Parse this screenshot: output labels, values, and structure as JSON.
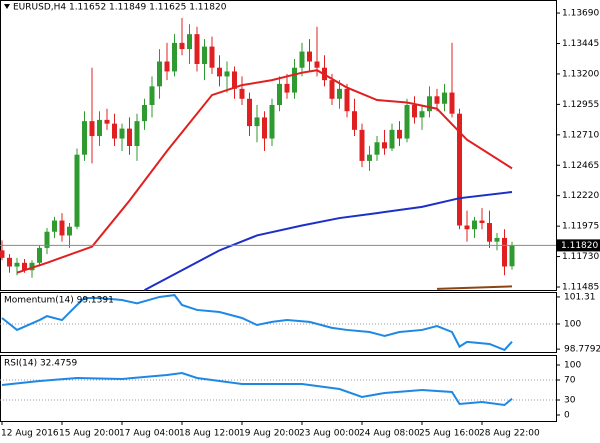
{
  "chart_data": {
    "type": "candlestick",
    "title": "EURUSD,H4 1.11652 1.11849 1.11625 1.11820",
    "categories": [
      "12 Aug 2016",
      null,
      null,
      null,
      null,
      null,
      null,
      null,
      "15 Aug 20:00",
      null,
      null,
      null,
      null,
      null,
      null,
      null,
      "17 Aug 04:00",
      null,
      null,
      null,
      null,
      null,
      null,
      null,
      "18 Aug 12:00",
      null,
      null,
      null,
      null,
      null,
      null,
      null,
      "19 Aug 20:00",
      null,
      null,
      null,
      null,
      null,
      null,
      null,
      "23 Aug 00:00",
      null,
      null,
      null,
      null,
      null,
      null,
      null,
      "24 Aug 08:00",
      null,
      null,
      null,
      null,
      null,
      null,
      null,
      "25 Aug 16:00",
      null,
      null,
      null,
      null,
      null,
      null,
      null,
      "28 Aug 22:00",
      null,
      null,
      null,
      null
    ],
    "open": [
      1.1178,
      1.1172,
      1.1165,
      1.1168,
      1.1162,
      1.1168,
      1.118,
      1.1193,
      1.1202,
      1.119,
      1.1197,
      1.1255,
      1.1282,
      1.127,
      1.1283,
      1.128,
      1.1268,
      1.1276,
      1.1262,
      1.1282,
      1.1295,
      1.131,
      1.133,
      1.1322,
      1.1345,
      1.134,
      1.1352,
      1.1328,
      1.1342,
      1.1325,
      1.1318,
      1.1322,
      1.1308,
      1.13,
      1.1278,
      1.1285,
      1.1268,
      1.1295,
      1.1312,
      1.1305,
      1.1325,
      1.1338,
      1.133,
      1.1325,
      1.1315,
      1.13,
      1.1308,
      1.129,
      1.1275,
      1.125,
      1.1255,
      1.1265,
      1.126,
      1.1275,
      1.1268,
      1.1295,
      1.1285,
      1.129,
      1.1302,
      1.1296,
      1.1305,
      1.1288,
      1.1198,
      1.1195,
      1.1202,
      1.12,
      1.1185,
      1.1188,
      1.11652
    ],
    "high": [
      1.1186,
      1.1175,
      1.1172,
      1.1171,
      1.117,
      1.1182,
      1.1196,
      1.1205,
      1.1208,
      1.12,
      1.126,
      1.129,
      1.1325,
      1.129,
      1.1292,
      1.1288,
      1.128,
      1.1285,
      1.1288,
      1.13,
      1.1318,
      1.134,
      1.1345,
      1.1352,
      1.1365,
      1.136,
      1.1358,
      1.1348,
      1.135,
      1.1335,
      1.133,
      1.1326,
      1.1318,
      1.1305,
      1.1295,
      1.129,
      1.13,
      1.1318,
      1.132,
      1.1332,
      1.1345,
      1.1348,
      1.1358,
      1.1335,
      1.132,
      1.1315,
      1.1312,
      1.13,
      1.128,
      1.1262,
      1.127,
      1.1275,
      1.128,
      1.1282,
      1.13,
      1.1302,
      1.1295,
      1.131,
      1.1308,
      1.1312,
      1.1345,
      1.1292,
      1.121,
      1.1205,
      1.1212,
      1.121,
      1.1192,
      1.1195,
      1.11849
    ],
    "low": [
      1.117,
      1.116,
      1.1158,
      1.116,
      1.1156,
      1.1165,
      1.1175,
      1.1188,
      1.1185,
      1.118,
      1.1195,
      1.125,
      1.1248,
      1.1262,
      1.1275,
      1.1262,
      1.1258,
      1.1255,
      1.125,
      1.1275,
      1.1285,
      1.13,
      1.1315,
      1.1318,
      1.1335,
      1.1328,
      1.1322,
      1.1315,
      1.132,
      1.131,
      1.1305,
      1.13,
      1.1295,
      1.127,
      1.1265,
      1.1258,
      1.1262,
      1.129,
      1.13,
      1.13,
      1.1318,
      1.1322,
      1.1318,
      1.131,
      1.1295,
      1.1292,
      1.1285,
      1.127,
      1.1245,
      1.1242,
      1.125,
      1.1255,
      1.1258,
      1.1262,
      1.1265,
      1.128,
      1.1275,
      1.1285,
      1.129,
      1.129,
      1.1285,
      1.1195,
      1.1185,
      1.1188,
      1.1195,
      1.118,
      1.1178,
      1.1158,
      1.11625
    ],
    "close": [
      1.1172,
      1.1165,
      1.1168,
      1.1162,
      1.1168,
      1.118,
      1.1193,
      1.1202,
      1.119,
      1.1197,
      1.1255,
      1.1282,
      1.127,
      1.1283,
      1.128,
      1.1268,
      1.1276,
      1.1262,
      1.1282,
      1.1295,
      1.131,
      1.133,
      1.1322,
      1.1345,
      1.134,
      1.1352,
      1.1328,
      1.1342,
      1.1325,
      1.1318,
      1.1322,
      1.1308,
      1.13,
      1.1278,
      1.1285,
      1.1268,
      1.1295,
      1.1312,
      1.1305,
      1.1325,
      1.1338,
      1.133,
      1.1325,
      1.1315,
      1.13,
      1.1308,
      1.129,
      1.1275,
      1.125,
      1.1255,
      1.1265,
      1.126,
      1.1275,
      1.1268,
      1.1295,
      1.1285,
      1.129,
      1.1302,
      1.1296,
      1.1305,
      1.1288,
      1.1198,
      1.1195,
      1.1202,
      1.12,
      1.1185,
      1.1188,
      1.1165,
      1.1182
    ],
    "up_color": "#2f9a2f",
    "down_color": "#e02020",
    "lines": [
      {
        "color": "#e02020",
        "x": [
          2,
          6,
          12,
          17,
          22,
          28,
          32,
          36,
          40,
          42,
          46,
          50,
          54,
          58,
          62,
          68
        ],
        "values": [
          1.116,
          1.1168,
          1.1181,
          1.1218,
          1.1258,
          1.1303,
          1.1311,
          1.1315,
          1.1321,
          1.1323,
          1.1309,
          1.1299,
          1.1297,
          1.1292,
          1.1267,
          1.1244
        ]
      },
      {
        "color": "#1c2fc8",
        "x": [
          19,
          24,
          29,
          34,
          40,
          45,
          50,
          56,
          61,
          68
        ],
        "values": [
          1.1146,
          1.1162,
          1.1178,
          1.119,
          1.1198,
          1.1204,
          1.1208,
          1.1213,
          1.122,
          1.1225
        ]
      },
      {
        "color": "#8b4513",
        "x": [
          58,
          68
        ],
        "values": [
          1.1147,
          1.1149
        ]
      }
    ],
    "last_price": {
      "value": 1.1182,
      "label": "1.11820"
    },
    "ylim": [
      1.11461,
      1.13795
    ],
    "yticks": [
      {
        "value": 1.1369,
        "label": "1.13690"
      },
      {
        "value": 1.13445,
        "label": "1.13445"
      },
      {
        "value": 1.132,
        "label": "1.13200"
      },
      {
        "value": 1.12955,
        "label": "1.12955"
      },
      {
        "value": 1.1271,
        "label": "1.12710"
      },
      {
        "value": 1.12465,
        "label": "1.12465"
      },
      {
        "value": 1.1222,
        "label": "1.12220"
      },
      {
        "value": 1.11975,
        "label": "1.11975"
      },
      {
        "value": 1.1173,
        "label": "1.11730"
      },
      {
        "value": 1.11485,
        "label": "1.11485"
      }
    ],
    "indicators": [
      {
        "title": "Momentum(14) 99.1391",
        "color": "#1e88e5",
        "x": [
          0,
          2,
          5,
          6,
          8,
          10,
          11,
          13,
          16,
          18,
          21,
          23,
          24,
          26,
          29,
          32,
          34,
          36,
          38,
          41,
          44,
          46,
          49,
          51,
          53,
          56,
          58,
          60,
          61,
          62,
          65,
          67,
          68
        ],
        "values": [
          100.29,
          99.71,
          100.19,
          100.38,
          100.19,
          100.92,
          101.26,
          101.26,
          101.16,
          101.0,
          101.31,
          101.4,
          100.92,
          100.68,
          100.58,
          100.29,
          99.95,
          100.1,
          100.19,
          100.1,
          99.81,
          99.71,
          99.61,
          99.42,
          99.61,
          99.71,
          99.9,
          99.61,
          98.9,
          99.13,
          99.03,
          98.74,
          99.1391
        ],
        "ylim": [
          98.64,
          101.55
        ],
        "yticks": [
          101.31,
          100,
          98.7792
        ],
        "levels": [
          100
        ]
      },
      {
        "title": "RSI(14) 32.4759",
        "color": "#1e88e5",
        "x": [
          0,
          5,
          10,
          16,
          22,
          24,
          26,
          32,
          40,
          45,
          48,
          51,
          56,
          60,
          61,
          64,
          67,
          68
        ],
        "values": [
          60,
          68,
          74,
          72,
          80,
          84,
          74,
          62,
          62,
          52,
          36,
          44,
          50,
          46,
          22,
          26,
          20,
          32.4759
        ],
        "ylim": [
          -12,
          120
        ],
        "yticks": [
          100,
          70,
          30,
          0
        ],
        "levels": [
          70,
          30
        ]
      }
    ]
  }
}
